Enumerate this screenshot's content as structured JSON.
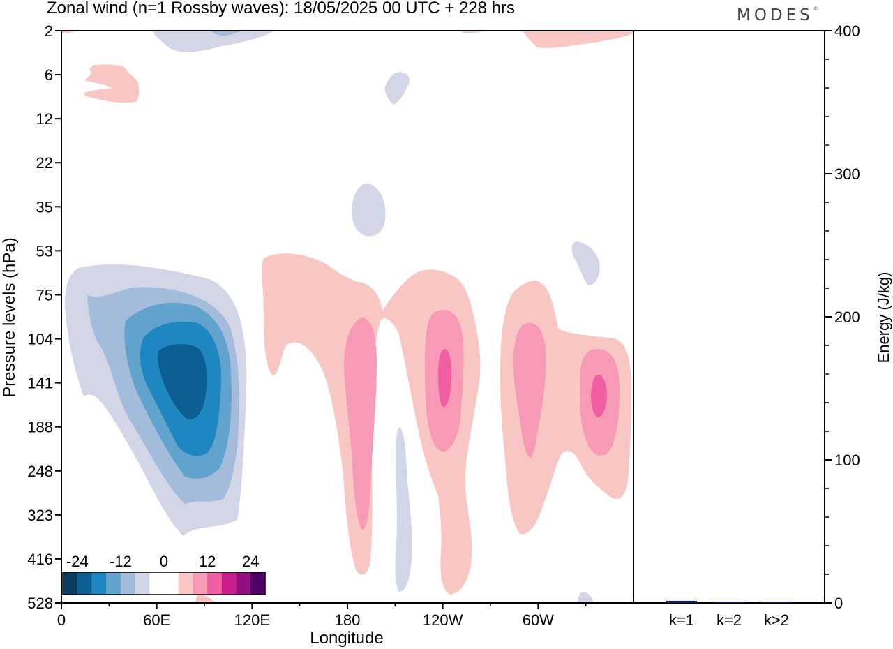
{
  "header": {
    "title": "Zonal wind (n=1 Rossby waves):  18/05/2025  00 UTC  + 228 hrs",
    "brand": "MODES",
    "brand_mark": "©"
  },
  "chart_data": [
    {
      "type": "contour",
      "xlabel": "Longitude",
      "ylabel": "Pressure levels (hPa)",
      "x_ticks": [
        "0",
        "60E",
        "120E",
        "180",
        "120W",
        "60W"
      ],
      "x_tick_degrees": [
        0,
        60,
        120,
        180,
        240,
        300
      ],
      "xlim": [
        0,
        360
      ],
      "y_ticks": [
        "2",
        "6",
        "12",
        "22",
        "35",
        "53",
        "75",
        "104",
        "141",
        "188",
        "248",
        "323",
        "416",
        "528"
      ],
      "colorbar": {
        "labels": [
          "-24",
          "-12",
          "0",
          "12",
          "24"
        ],
        "colors": [
          "#0b3e5e",
          "#0c5e93",
          "#1f87c0",
          "#62a3ce",
          "#a3bcdc",
          "#d3d6e7",
          "#ffffff",
          "#ffffff",
          "#f8c7c3",
          "#f79ab6",
          "#ef5fa1",
          "#c81f8c",
          "#92107d",
          "#4f0168"
        ]
      },
      "contour_regions": [
        {
          "sign": "negative",
          "level": 1,
          "center_longitude": 75,
          "center_level": "104"
        },
        {
          "sign": "negative",
          "level": 2,
          "center_longitude": 75,
          "center_level": "141"
        },
        {
          "sign": "negative",
          "level": 3,
          "center_longitude": 77,
          "center_level": "141"
        },
        {
          "sign": "negative",
          "level": 4,
          "center_longitude": 78,
          "center_level": "141"
        },
        {
          "sign": "negative",
          "level": 5,
          "center_longitude": 78,
          "center_level": "141"
        },
        {
          "sign": "positive",
          "level": 1,
          "center_longitude": 190,
          "center_level": "141"
        },
        {
          "sign": "positive",
          "level": 2,
          "center_longitude": 188,
          "center_level": "188"
        },
        {
          "sign": "positive",
          "level": 2,
          "center_longitude": 240,
          "center_level": "141"
        },
        {
          "sign": "positive",
          "level": 3,
          "center_longitude": 242,
          "center_level": "141"
        },
        {
          "sign": "positive",
          "level": 2,
          "center_longitude": 293,
          "center_level": "141"
        },
        {
          "sign": "positive",
          "level": 2,
          "center_longitude": 337,
          "center_level": "141"
        },
        {
          "sign": "positive",
          "level": 3,
          "center_longitude": 338,
          "center_level": "141"
        }
      ]
    },
    {
      "type": "bar",
      "ylabel": "Energy (J/kg)",
      "ylim": [
        0,
        400
      ],
      "y_ticks": [
        "0",
        "100",
        "200",
        "300",
        "400"
      ],
      "categories": [
        "k=1",
        "k=2",
        "k>2"
      ],
      "values": [
        1.5,
        0.6,
        0.6
      ],
      "bar_color": "#0a1d6e"
    }
  ]
}
